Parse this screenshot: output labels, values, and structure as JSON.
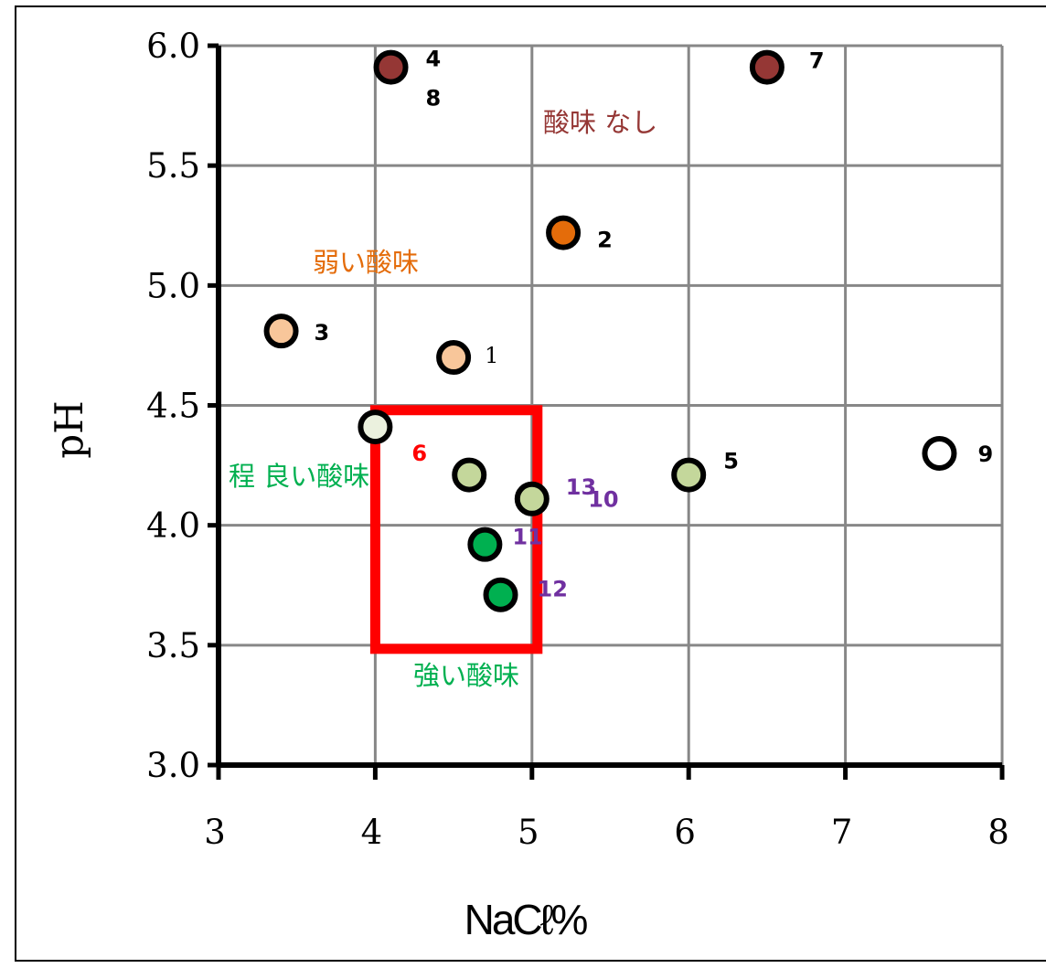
{
  "chart_data": {
    "type": "scatter",
    "xlabel": "NaCℓ%",
    "ylabel": "pH",
    "xlim": [
      3,
      8
    ],
    "ylim": [
      3.0,
      6.0
    ],
    "x_ticks": [
      "3",
      "4",
      "5",
      "6",
      "7",
      "8"
    ],
    "y_ticks": [
      "3.0",
      "3.5",
      "4.0",
      "4.5",
      "5.0",
      "5.5",
      "6.0"
    ],
    "grid": true,
    "points": [
      {
        "label": "1",
        "x": 4.5,
        "y": 4.7,
        "fill": "#f8c69a",
        "label_color": "#000000",
        "label_style": "serif"
      },
      {
        "label": "2",
        "x": 5.2,
        "y": 5.22,
        "fill": "#e46c0a",
        "label_color": "#000000"
      },
      {
        "label": "3",
        "x": 3.4,
        "y": 4.81,
        "fill": "#f8c69a",
        "label_color": "#000000"
      },
      {
        "label": "4",
        "x": 4.1,
        "y": 5.91,
        "fill": "#953735",
        "label_color": "#000000"
      },
      {
        "label": "8",
        "x": 4.1,
        "y": 5.91,
        "fill": "#953735",
        "label_color": "#000000"
      },
      {
        "label": "5",
        "x": 6.0,
        "y": 4.21,
        "fill": "#c4d79b",
        "label_color": "#000000"
      },
      {
        "label": "6",
        "x": 4.0,
        "y": 4.41,
        "fill": "#ebf1de",
        "label_color": "#ff0000"
      },
      {
        "label": "7",
        "x": 6.5,
        "y": 5.91,
        "fill": "#953735",
        "label_color": "#000000"
      },
      {
        "label": "9",
        "x": 7.6,
        "y": 4.3,
        "fill": "#ffffff",
        "label_color": "#000000"
      },
      {
        "label": "10",
        "x": 4.6,
        "y": 4.21,
        "fill": "#c4d79b",
        "label_color": "#7030a0"
      },
      {
        "label": "11",
        "x": 4.7,
        "y": 3.92,
        "fill": "#00b050",
        "label_color": "#7030a0"
      },
      {
        "label": "12",
        "x": 4.8,
        "y": 3.71,
        "fill": "#00b050",
        "label_color": "#7030a0"
      },
      {
        "label": "13",
        "x": 5.0,
        "y": 4.11,
        "fill": "#c4d79b",
        "label_color": "#7030a0"
      }
    ],
    "annotations": [
      {
        "text": "酸味 なし",
        "color": "#953735"
      },
      {
        "text": "弱い酸味",
        "color": "#e46c0a"
      },
      {
        "text": "程 良い酸味",
        "color": "#00b050"
      },
      {
        "text": "強い酸味",
        "color": "#00b050"
      }
    ],
    "highlight_box": {
      "x_range": [
        4.0,
        5.0
      ],
      "y_range": [
        3.5,
        4.48
      ],
      "color": "#ff0000"
    }
  }
}
